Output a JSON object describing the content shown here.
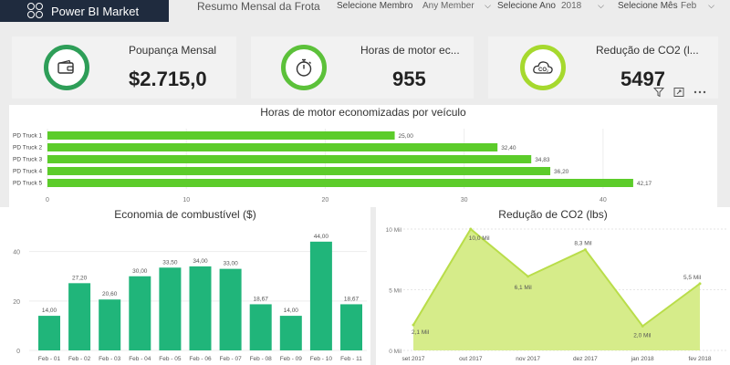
{
  "header": {
    "brand": "Power BI Market",
    "report_title": "Resumo Mensal da Frota",
    "slicers": [
      {
        "label": "Selecione Membro",
        "value": "Any Member"
      },
      {
        "label": "Selecione Ano",
        "value": "2018"
      },
      {
        "label": "Selecione Mês",
        "value": "Feb"
      }
    ]
  },
  "cards": [
    {
      "title": "Poupança Mensal",
      "value": "$2.715,0",
      "icon": "wallet-icon",
      "ring_color": "#2e9e58"
    },
    {
      "title": "Horas de motor ec...",
      "value": "955",
      "icon": "stopwatch-icon",
      "ring_color": "#5cc13a"
    },
    {
      "title": "Redução de CO2 (l...",
      "value": "5497",
      "icon": "co2-cloud-icon",
      "ring_color": "#a6d92e"
    }
  ],
  "toolbar": {
    "icons": [
      "filter-icon",
      "focus-mode-icon",
      "more-options-icon"
    ]
  },
  "colors": {
    "bar_green": "#5ccc2a",
    "column_green": "#20b57a",
    "area_fill": "#d6ec8a",
    "area_line": "#b9dd4a",
    "header_bg": "#1f2b3e"
  },
  "chart_data": [
    {
      "type": "bar",
      "title": "Horas de motor economizadas por veículo",
      "categories": [
        "PD Truck 1",
        "PD Truck 2",
        "PD Truck 3",
        "PD Truck 4",
        "PD Truck 5"
      ],
      "values": [
        25.0,
        32.4,
        34.83,
        36.2,
        42.17
      ],
      "labels": [
        "25,00",
        "32,40",
        "34,83",
        "36,20",
        "42,17"
      ],
      "xticks": [
        0,
        10,
        20,
        30,
        40
      ],
      "xlim": [
        0,
        45
      ]
    },
    {
      "type": "bar",
      "title": "Economia de combustível ($)",
      "categories": [
        "Feb - 01",
        "Feb - 02",
        "Feb - 03",
        "Feb - 04",
        "Feb - 05",
        "Feb - 06",
        "Feb - 07",
        "Feb - 08",
        "Feb - 09",
        "Feb - 10",
        "Feb - 11"
      ],
      "values": [
        14.0,
        27.2,
        20.6,
        30.0,
        33.5,
        34.0,
        33.0,
        18.67,
        14.0,
        44.0,
        18.67
      ],
      "labels": [
        "14,00",
        "27,20",
        "20,60",
        "30,00",
        "33,50",
        "34,00",
        "33,00",
        "18,67",
        "14,00",
        "44,00",
        "18,67"
      ],
      "yticks": [
        0,
        20,
        40
      ],
      "ylim": [
        0,
        48
      ]
    },
    {
      "type": "area",
      "title": "Redução de CO2 (lbs)",
      "categories": [
        "set 2017",
        "out 2017",
        "nov 2017",
        "dez 2017",
        "jan 2018",
        "fev 2018"
      ],
      "values": [
        2.1,
        10.0,
        6.1,
        8.3,
        2.0,
        5.5
      ],
      "labels": [
        "2,1 Mil",
        "10,0 Mil",
        "6,1 Mil",
        "8,3 Mil",
        "2,0 Mil",
        "5,5 Mil"
      ],
      "yticks": [
        "0 Mil",
        "5 Mil",
        "10 Mil"
      ],
      "ytick_values": [
        0,
        5,
        10
      ],
      "ylim": [
        0,
        10
      ]
    }
  ]
}
